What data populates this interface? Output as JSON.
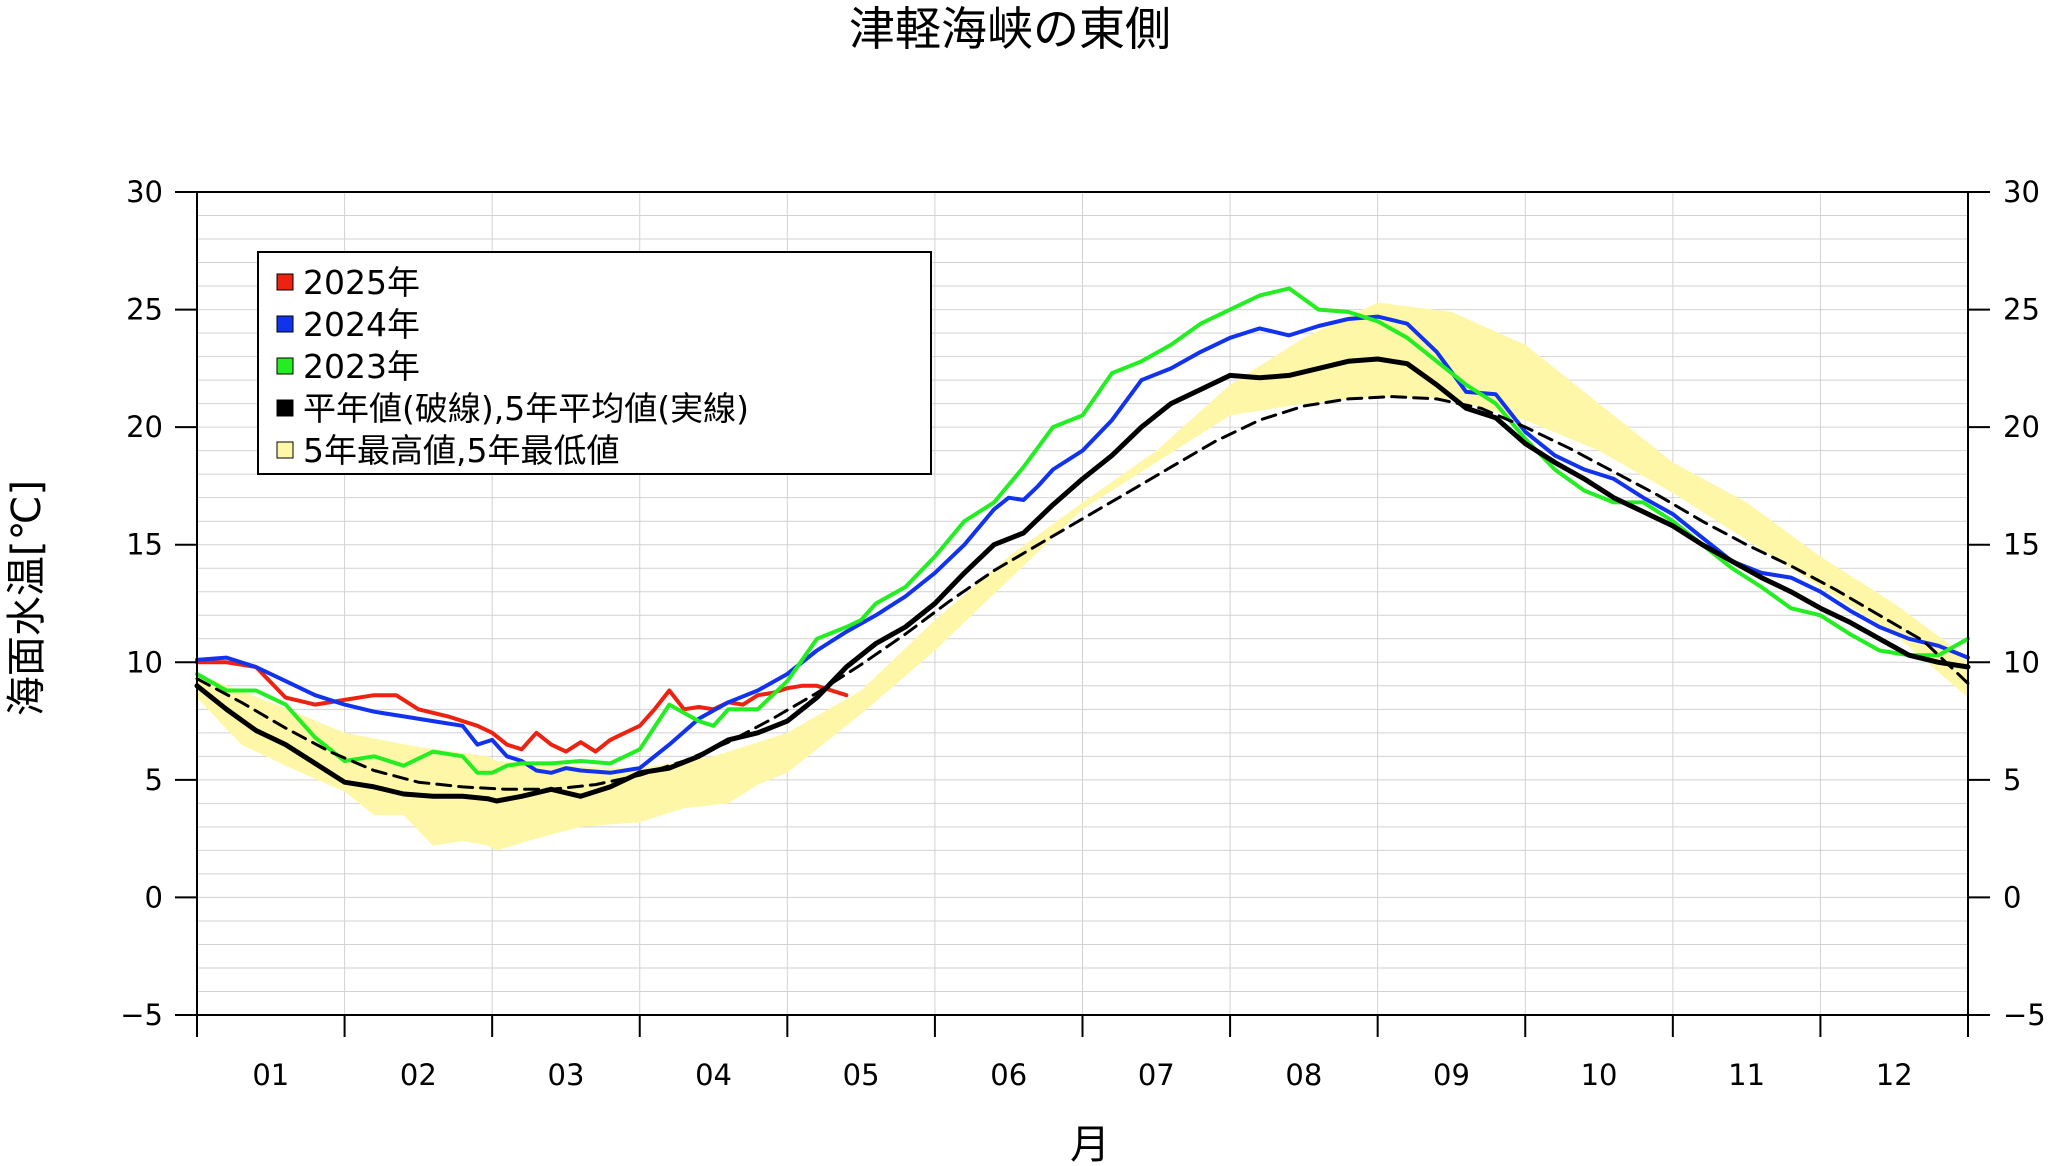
{
  "chart_data": {
    "type": "line",
    "title": "津軽海峡の東側",
    "xlabel": "月",
    "ylabel": "海面水温[℃]",
    "ylim": [
      -5,
      30
    ],
    "xlim": [
      0,
      12
    ],
    "yticks": [
      -5,
      0,
      5,
      10,
      15,
      20,
      25,
      30
    ],
    "ytick_labels": [
      "−5",
      "0",
      "5",
      "10",
      "15",
      "20",
      "25",
      "30"
    ],
    "month_labels": [
      "01",
      "02",
      "03",
      "04",
      "05",
      "06",
      "07",
      "08",
      "09",
      "10",
      "11",
      "12"
    ],
    "grid": true,
    "legend_position": "top-left",
    "legend": [
      {
        "label": "2025年",
        "color": "#ee2211"
      },
      {
        "label": "2024年",
        "color": "#1133ee"
      },
      {
        "label": "2023年",
        "color": "#22ee22"
      },
      {
        "label": "平年値(破線),5年平均値(実線)",
        "color": "#000000"
      },
      {
        "label": "5年最高値,5年最低値",
        "color": "#fff7a8"
      }
    ],
    "band_upper": {
      "x": [
        0,
        0.5,
        1,
        1.5,
        1.97,
        2.03,
        2.5,
        3,
        3.5,
        4,
        4.5,
        5,
        5.5,
        6,
        6.5,
        7,
        7.5,
        8,
        8.5,
        9,
        9.5,
        10,
        10.5,
        11,
        11.5,
        12
      ],
      "y": [
        9.5,
        8.3,
        7.0,
        6.4,
        6.0,
        5.8,
        5.6,
        5.5,
        6.0,
        7.0,
        8.8,
        11.8,
        14.5,
        16.8,
        19.0,
        21.8,
        23.8,
        25.3,
        24.9,
        23.5,
        21.0,
        18.5,
        16.8,
        14.5,
        12.5,
        10.2
      ]
    },
    "band_lower": {
      "x": [
        0,
        0.3,
        0.6,
        1,
        1.2,
        1.4,
        1.6,
        1.8,
        1.97,
        2.03,
        2.3,
        2.6,
        3,
        3.3,
        3.6,
        3.8,
        4,
        4.5,
        5,
        5.5,
        6,
        6.5,
        7,
        7.5,
        8,
        8.5,
        9,
        9.5,
        10,
        10.5,
        11,
        11.5,
        12
      ],
      "y": [
        8.5,
        6.5,
        5.6,
        4.5,
        3.5,
        3.5,
        2.2,
        2.4,
        2.2,
        2.0,
        2.5,
        3.0,
        3.2,
        3.8,
        4.0,
        4.8,
        5.3,
        7.8,
        10.5,
        13.5,
        16.5,
        18.5,
        20.5,
        21.0,
        21.3,
        21.2,
        20.3,
        19.0,
        17.2,
        15.2,
        13.2,
        11.2,
        8.5
      ]
    },
    "series": [
      {
        "name": "2025年",
        "color": "#ee2211",
        "x": [
          0,
          0.2,
          0.4,
          0.6,
          0.8,
          1.0,
          1.2,
          1.35,
          1.5,
          1.7,
          1.9,
          2.0,
          2.1,
          2.2,
          2.3,
          2.4,
          2.5,
          2.6,
          2.7,
          2.8,
          2.9,
          3.0,
          3.1,
          3.2,
          3.3,
          3.4,
          3.5,
          3.6,
          3.7,
          3.8,
          3.9,
          4.0,
          4.1,
          4.2,
          4.3,
          4.4
        ],
        "y": [
          10.0,
          10.0,
          9.8,
          8.5,
          8.2,
          8.4,
          8.6,
          8.6,
          8.0,
          7.7,
          7.3,
          7.0,
          6.5,
          6.3,
          7.0,
          6.5,
          6.2,
          6.6,
          6.2,
          6.7,
          7.0,
          7.3,
          8.0,
          8.8,
          8.0,
          8.1,
          8.0,
          8.3,
          8.2,
          8.6,
          8.7,
          8.9,
          9.0,
          9.0,
          8.8,
          8.6
        ]
      },
      {
        "name": "2024年",
        "color": "#1133ee",
        "x": [
          0,
          0.2,
          0.4,
          0.6,
          0.8,
          1.0,
          1.2,
          1.4,
          1.6,
          1.8,
          1.9,
          2.0,
          2.1,
          2.2,
          2.3,
          2.4,
          2.5,
          2.6,
          2.8,
          3.0,
          3.2,
          3.4,
          3.6,
          3.8,
          4.0,
          4.2,
          4.4,
          4.6,
          4.8,
          5.0,
          5.2,
          5.4,
          5.5,
          5.6,
          5.7,
          5.8,
          6.0,
          6.2,
          6.4,
          6.6,
          6.8,
          7.0,
          7.2,
          7.4,
          7.6,
          7.8,
          8.0,
          8.2,
          8.4,
          8.6,
          8.8,
          9.0,
          9.2,
          9.4,
          9.6,
          9.8,
          10.0,
          10.2,
          10.4,
          10.6,
          10.8,
          11.0,
          11.2,
          11.4,
          11.6,
          11.8,
          12.0
        ],
        "y": [
          10.1,
          10.2,
          9.8,
          9.2,
          8.6,
          8.2,
          7.9,
          7.7,
          7.5,
          7.3,
          6.5,
          6.7,
          6.0,
          5.8,
          5.4,
          5.3,
          5.5,
          5.4,
          5.3,
          5.5,
          6.5,
          7.6,
          8.3,
          8.8,
          9.5,
          10.5,
          11.3,
          12.0,
          12.8,
          13.8,
          15.0,
          16.5,
          17.0,
          16.9,
          17.5,
          18.2,
          19.0,
          20.3,
          22.0,
          22.5,
          23.2,
          23.8,
          24.2,
          23.9,
          24.3,
          24.6,
          24.7,
          24.4,
          23.2,
          21.5,
          21.4,
          19.8,
          18.8,
          18.2,
          17.8,
          17.0,
          16.3,
          15.3,
          14.3,
          13.8,
          13.6,
          13.0,
          12.2,
          11.5,
          11.0,
          10.7,
          10.2
        ]
      },
      {
        "name": "2023年",
        "color": "#22ee22",
        "x": [
          0,
          0.2,
          0.4,
          0.6,
          0.8,
          1.0,
          1.2,
          1.4,
          1.6,
          1.8,
          1.9,
          2.0,
          2.1,
          2.2,
          2.4,
          2.6,
          2.8,
          3.0,
          3.2,
          3.4,
          3.5,
          3.6,
          3.8,
          4.0,
          4.2,
          4.4,
          4.5,
          4.6,
          4.8,
          5.0,
          5.2,
          5.4,
          5.6,
          5.8,
          6.0,
          6.2,
          6.4,
          6.6,
          6.8,
          7.0,
          7.2,
          7.4,
          7.6,
          7.8,
          8.0,
          8.2,
          8.4,
          8.6,
          8.8,
          9.0,
          9.2,
          9.4,
          9.6,
          9.8,
          10.0,
          10.2,
          10.4,
          10.6,
          10.8,
          11.0,
          11.2,
          11.4,
          11.6,
          11.8,
          12.0
        ],
        "y": [
          9.5,
          8.8,
          8.8,
          8.2,
          6.8,
          5.8,
          6.0,
          5.6,
          6.2,
          6.0,
          5.3,
          5.3,
          5.6,
          5.7,
          5.7,
          5.8,
          5.7,
          6.3,
          8.2,
          7.5,
          7.3,
          8.0,
          8.0,
          9.2,
          11.0,
          11.5,
          11.8,
          12.5,
          13.2,
          14.5,
          16.0,
          16.8,
          18.3,
          20.0,
          20.5,
          22.3,
          22.8,
          23.5,
          24.4,
          25.0,
          25.6,
          25.9,
          25.0,
          24.9,
          24.5,
          23.8,
          22.8,
          21.8,
          21.0,
          19.5,
          18.2,
          17.3,
          16.8,
          16.8,
          16.0,
          15.0,
          14.0,
          13.2,
          12.3,
          12.0,
          11.2,
          10.5,
          10.3,
          10.3,
          11.0
        ]
      },
      {
        "name": "5年平均値",
        "color": "#000000",
        "x": [
          0,
          0.2,
          0.4,
          0.6,
          0.8,
          1.0,
          1.2,
          1.4,
          1.6,
          1.8,
          1.97,
          2.03,
          2.2,
          2.4,
          2.6,
          2.8,
          3.0,
          3.2,
          3.4,
          3.6,
          3.8,
          4.0,
          4.2,
          4.4,
          4.6,
          4.8,
          5.0,
          5.2,
          5.4,
          5.6,
          5.8,
          6.0,
          6.2,
          6.4,
          6.6,
          6.8,
          7.0,
          7.2,
          7.4,
          7.6,
          7.8,
          8.0,
          8.2,
          8.4,
          8.6,
          8.8,
          9.0,
          9.2,
          9.4,
          9.6,
          9.8,
          10.0,
          10.2,
          10.4,
          10.6,
          10.8,
          11.0,
          11.2,
          11.4,
          11.6,
          11.8,
          12.0
        ],
        "y": [
          9.0,
          8.0,
          7.1,
          6.5,
          5.7,
          4.9,
          4.7,
          4.4,
          4.3,
          4.3,
          4.2,
          4.1,
          4.3,
          4.6,
          4.3,
          4.7,
          5.3,
          5.5,
          6.0,
          6.7,
          7.0,
          7.5,
          8.5,
          9.8,
          10.8,
          11.5,
          12.5,
          13.8,
          15.0,
          15.5,
          16.7,
          17.8,
          18.8,
          20.0,
          21.0,
          21.6,
          22.2,
          22.1,
          22.2,
          22.5,
          22.8,
          22.9,
          22.7,
          21.8,
          20.8,
          20.4,
          19.3,
          18.5,
          17.8,
          17.0,
          16.4,
          15.8,
          15.0,
          14.3,
          13.6,
          13.0,
          12.3,
          11.7,
          11.0,
          10.3,
          10.0,
          9.8
        ]
      },
      {
        "name": "平年値",
        "color": "#000000",
        "dashed": true,
        "x": [
          0,
          0.3,
          0.6,
          0.9,
          1.2,
          1.5,
          1.8,
          2.1,
          2.4,
          2.7,
          3.0,
          3.3,
          3.6,
          3.9,
          4.2,
          4.5,
          4.8,
          5.1,
          5.4,
          5.7,
          6.0,
          6.3,
          6.6,
          6.9,
          7.2,
          7.5,
          7.8,
          8.1,
          8.4,
          8.7,
          9.0,
          9.3,
          9.6,
          9.9,
          10.2,
          10.5,
          10.8,
          11.1,
          11.4,
          11.7,
          12.0
        ],
        "y": [
          9.3,
          8.3,
          7.2,
          6.2,
          5.4,
          4.9,
          4.7,
          4.6,
          4.6,
          4.8,
          5.2,
          5.8,
          6.6,
          7.6,
          8.7,
          9.9,
          11.2,
          12.6,
          13.9,
          15.0,
          16.1,
          17.2,
          18.3,
          19.4,
          20.3,
          20.9,
          21.2,
          21.3,
          21.2,
          20.8,
          20.0,
          19.1,
          18.1,
          17.1,
          16.0,
          15.0,
          14.1,
          13.1,
          12.0,
          10.9,
          9.1
        ]
      }
    ]
  }
}
